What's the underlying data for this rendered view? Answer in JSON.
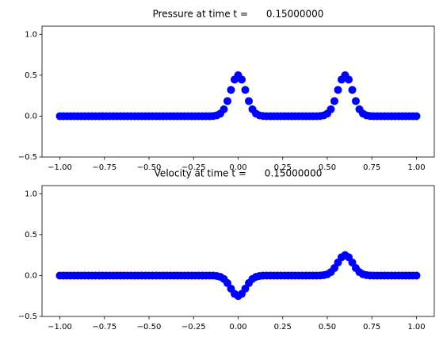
{
  "chart_data": [
    {
      "type": "scatter",
      "title": "Pressure at time t =      0.15000000",
      "color": "#0000ff",
      "x": [
        -1,
        -0.98,
        -0.96,
        -0.94,
        -0.92,
        -0.9,
        -0.88,
        -0.86,
        -0.84,
        -0.82,
        -0.8,
        -0.78,
        -0.76,
        -0.74,
        -0.72,
        -0.7,
        -0.68,
        -0.66,
        -0.64,
        -0.62,
        -0.6,
        -0.58,
        -0.56,
        -0.54,
        -0.52,
        -0.5,
        -0.48,
        -0.46,
        -0.44,
        -0.42,
        -0.4,
        -0.38,
        -0.36,
        -0.34,
        -0.32,
        -0.3,
        -0.28,
        -0.26,
        -0.24,
        -0.22,
        -0.2,
        -0.18,
        -0.16,
        -0.14,
        -0.12,
        -0.1,
        -0.08,
        -0.06,
        -0.04,
        -0.02,
        0,
        0.02,
        0.04,
        0.06,
        0.08,
        0.1,
        0.12,
        0.14,
        0.16,
        0.18,
        0.2,
        0.22,
        0.24,
        0.26,
        0.28,
        0.3,
        0.32,
        0.34,
        0.36,
        0.38,
        0.4,
        0.42,
        0.44,
        0.46,
        0.48,
        0.5,
        0.52,
        0.54,
        0.56,
        0.58,
        0.6,
        0.62,
        0.64,
        0.66,
        0.68,
        0.7,
        0.72,
        0.74,
        0.76,
        0.78,
        0.8,
        0.82,
        0.84,
        0.86,
        0.88,
        0.9,
        0.92,
        0.94,
        0.96,
        0.98,
        1
      ],
      "values": [
        0,
        0,
        0,
        0,
        0,
        0,
        0,
        0,
        0,
        0,
        0,
        0,
        0,
        0,
        0,
        0,
        0,
        0,
        0,
        0,
        0,
        0,
        0,
        0,
        0,
        0,
        0,
        0,
        0,
        0,
        0,
        0,
        0,
        0,
        0,
        0,
        0,
        0,
        0,
        0,
        0,
        0,
        0,
        0.002,
        0.009,
        0.031,
        0.084,
        0.184,
        0.321,
        0.447,
        0.5,
        0.447,
        0.321,
        0.184,
        0.084,
        0.031,
        0.009,
        0.002,
        0,
        0,
        0,
        0,
        0,
        0,
        0,
        0,
        0,
        0,
        0,
        0,
        0,
        0,
        0,
        0.002,
        0.009,
        0.031,
        0.084,
        0.184,
        0.321,
        0.447,
        0.5,
        0.447,
        0.321,
        0.184,
        0.084,
        0.031,
        0.009,
        0.002,
        0,
        0,
        0,
        0,
        0,
        0,
        0,
        0,
        0,
        0,
        0,
        0,
        0
      ],
      "xlim": [
        -1.1,
        1.1
      ],
      "ylim": [
        -0.5,
        1.1
      ],
      "xticks": [
        {
          "value": -1,
          "label": "−1.00"
        },
        {
          "value": -0.75,
          "label": "−0.75"
        },
        {
          "value": -0.5,
          "label": "−0.50"
        },
        {
          "value": -0.25,
          "label": "−0.25"
        },
        {
          "value": 0,
          "label": "0.00"
        },
        {
          "value": 0.25,
          "label": "0.25"
        },
        {
          "value": 0.5,
          "label": "0.50"
        },
        {
          "value": 0.75,
          "label": "0.75"
        },
        {
          "value": 1,
          "label": "1.00"
        }
      ],
      "yticks": [
        {
          "value": -0.5,
          "label": "−0.5"
        },
        {
          "value": 0,
          "label": "0.0"
        },
        {
          "value": 0.5,
          "label": "0.5"
        },
        {
          "value": 1,
          "label": "1.0"
        }
      ]
    },
    {
      "type": "scatter",
      "title": "Velocity at time t =      0.15000000",
      "color": "#0000ff",
      "x": [
        -1,
        -0.98,
        -0.96,
        -0.94,
        -0.92,
        -0.9,
        -0.88,
        -0.86,
        -0.84,
        -0.82,
        -0.8,
        -0.78,
        -0.76,
        -0.74,
        -0.72,
        -0.7,
        -0.68,
        -0.66,
        -0.64,
        -0.62,
        -0.6,
        -0.58,
        -0.56,
        -0.54,
        -0.52,
        -0.5,
        -0.48,
        -0.46,
        -0.44,
        -0.42,
        -0.4,
        -0.38,
        -0.36,
        -0.34,
        -0.32,
        -0.3,
        -0.28,
        -0.26,
        -0.24,
        -0.22,
        -0.2,
        -0.18,
        -0.16,
        -0.14,
        -0.12,
        -0.1,
        -0.08,
        -0.06,
        -0.04,
        -0.02,
        0,
        0.02,
        0.04,
        0.06,
        0.08,
        0.1,
        0.12,
        0.14,
        0.16,
        0.18,
        0.2,
        0.22,
        0.24,
        0.26,
        0.28,
        0.3,
        0.32,
        0.34,
        0.36,
        0.38,
        0.4,
        0.42,
        0.44,
        0.46,
        0.48,
        0.5,
        0.52,
        0.54,
        0.56,
        0.58,
        0.6,
        0.62,
        0.64,
        0.66,
        0.68,
        0.7,
        0.72,
        0.74,
        0.76,
        0.78,
        0.8,
        0.82,
        0.84,
        0.86,
        0.88,
        0.9,
        0.92,
        0.94,
        0.96,
        0.98,
        1
      ],
      "values": [
        0,
        0,
        0,
        0,
        0,
        0,
        0,
        0,
        0,
        0,
        0,
        0,
        0,
        0,
        0,
        0,
        0,
        0,
        0,
        0,
        0,
        0,
        0,
        0,
        0,
        0,
        0,
        0,
        0,
        0,
        0,
        0,
        0,
        0,
        0,
        0,
        0,
        0,
        0,
        0,
        0,
        0,
        0,
        -0.001,
        -0.005,
        -0.016,
        -0.042,
        -0.092,
        -0.16,
        -0.224,
        -0.25,
        -0.224,
        -0.16,
        -0.092,
        -0.042,
        -0.016,
        -0.005,
        -0.001,
        0,
        0,
        0,
        0,
        0,
        0,
        0,
        0,
        0,
        0,
        0,
        0,
        0,
        0,
        0,
        0.001,
        0.005,
        0.016,
        0.042,
        0.092,
        0.16,
        0.224,
        0.25,
        0.224,
        0.16,
        0.092,
        0.042,
        0.016,
        0.005,
        0.001,
        0,
        0,
        0,
        0,
        0,
        0,
        0,
        0,
        0,
        0,
        0,
        0,
        0
      ],
      "xlim": [
        -1.1,
        1.1
      ],
      "ylim": [
        -0.5,
        1.1
      ],
      "xticks": [
        {
          "value": -1,
          "label": "−1.00"
        },
        {
          "value": -0.75,
          "label": "−0.75"
        },
        {
          "value": -0.5,
          "label": "−0.50"
        },
        {
          "value": -0.25,
          "label": "−0.25"
        },
        {
          "value": 0,
          "label": "0.00"
        },
        {
          "value": 0.25,
          "label": "0.25"
        },
        {
          "value": 0.5,
          "label": "0.50"
        },
        {
          "value": 0.75,
          "label": "0.75"
        },
        {
          "value": 1,
          "label": "1.00"
        }
      ],
      "yticks": [
        {
          "value": -0.5,
          "label": "−0.5"
        },
        {
          "value": 0,
          "label": "0.0"
        },
        {
          "value": 0.5,
          "label": "0.5"
        },
        {
          "value": 1,
          "label": "1.0"
        }
      ]
    }
  ]
}
